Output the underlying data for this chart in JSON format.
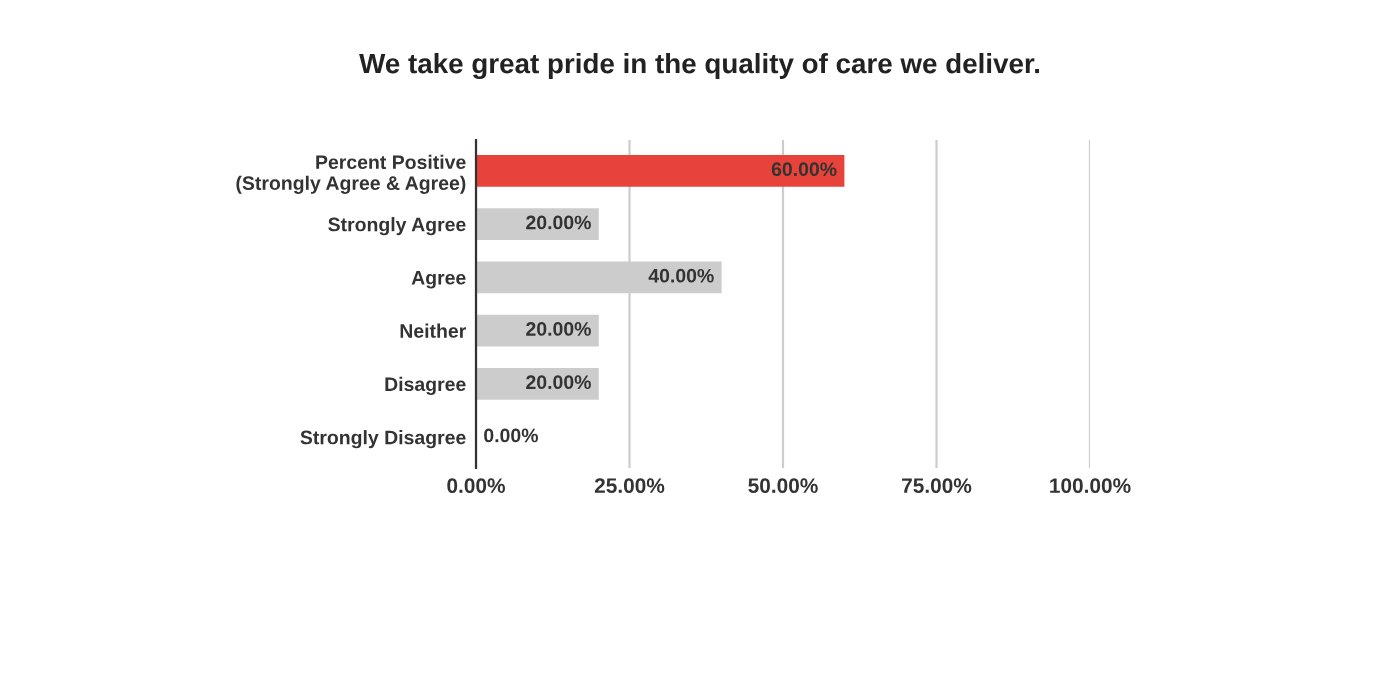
{
  "chart_data": {
    "type": "bar",
    "orientation": "horizontal",
    "title": "We take great pride in the quality of care we deliver.",
    "categories": [
      "Percent Positive\n(Strongly Agree & Agree)",
      "Strongly Agree",
      "Agree",
      "Neither",
      "Disagree",
      "Strongly Disagree"
    ],
    "values": [
      60,
      20,
      40,
      20,
      20,
      0
    ],
    "colors": [
      "#e8433a",
      "#cccccc",
      "#cccccc",
      "#cccccc",
      "#cccccc",
      "#cccccc"
    ],
    "value_labels": [
      "60.00%",
      "20.00%",
      "40.00%",
      "20.00%",
      "20.00%",
      "0.00%"
    ],
    "xlim": [
      0,
      100
    ],
    "xticks": [
      {
        "value": 0,
        "label": "0.00%"
      },
      {
        "value": 25,
        "label": "25.00%"
      },
      {
        "value": 50,
        "label": "50.00%"
      },
      {
        "value": 75,
        "label": "75.00%"
      },
      {
        "value": 100,
        "label": "100.00%"
      }
    ],
    "grid": "x",
    "legend": false
  }
}
